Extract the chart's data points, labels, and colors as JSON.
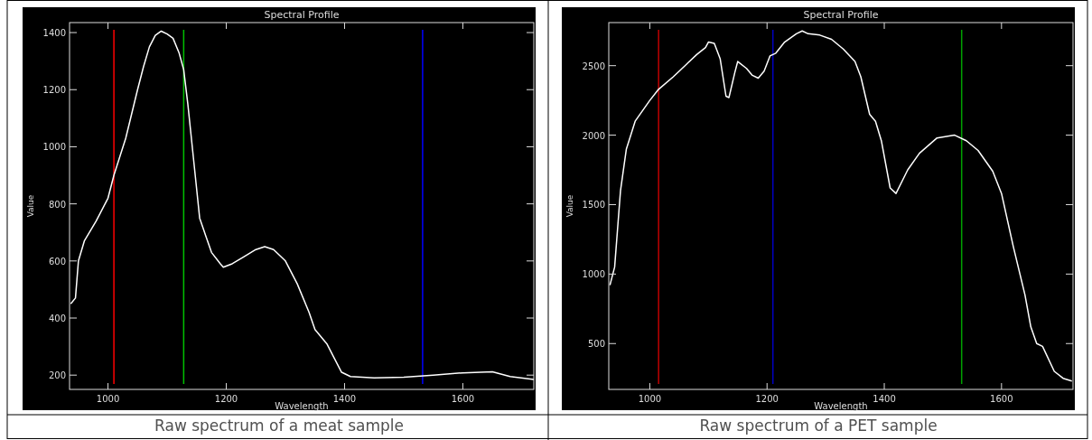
{
  "chart_data": [
    {
      "type": "line",
      "title": "Spectral Profile",
      "xlabel": "Wavelength",
      "ylabel": "Value",
      "annotations": [
        "Raw spectrum of a meat sample"
      ],
      "xlim": [
        935,
        1720
      ],
      "ylim": [
        150,
        1435
      ],
      "xticks": [
        1000,
        1200,
        1400,
        1600
      ],
      "yticks": [
        200,
        400,
        600,
        800,
        1000,
        1200,
        1400
      ],
      "grid": false,
      "ref_lines": [
        {
          "axis": "x",
          "value": 1010,
          "color": "#ff0000"
        },
        {
          "axis": "x",
          "value": 1128,
          "color": "#00c000"
        },
        {
          "axis": "x",
          "value": 1532,
          "color": "#0000ff"
        }
      ],
      "series": [
        {
          "color": "#ffffff",
          "x": [
            937,
            945,
            950,
            960,
            980,
            1000,
            1010,
            1030,
            1050,
            1060,
            1070,
            1080,
            1090,
            1100,
            1110,
            1120,
            1128,
            1135,
            1145,
            1155,
            1165,
            1175,
            1190,
            1195,
            1210,
            1230,
            1250,
            1265,
            1280,
            1290,
            1300,
            1320,
            1340,
            1350,
            1370,
            1380,
            1395,
            1410,
            1450,
            1500,
            1550,
            1600,
            1650,
            1680,
            1720
          ],
          "values": [
            450,
            470,
            600,
            670,
            740,
            820,
            900,
            1030,
            1200,
            1280,
            1350,
            1390,
            1405,
            1395,
            1380,
            1330,
            1270,
            1150,
            950,
            750,
            690,
            630,
            590,
            578,
            590,
            615,
            640,
            650,
            640,
            620,
            600,
            520,
            420,
            360,
            310,
            270,
            210,
            195,
            190,
            193,
            200,
            208,
            212,
            195,
            185
          ]
        }
      ]
    },
    {
      "type": "line",
      "title": "Spectral Profile",
      "xlabel": "Wavelength",
      "ylabel": "Value",
      "annotations": [
        "Raw spectrum of a PET sample"
      ],
      "xlim": [
        930,
        1722
      ],
      "ylim": [
        170,
        2810
      ],
      "xticks": [
        1000,
        1200,
        1400,
        1600
      ],
      "yticks": [
        500,
        1000,
        1500,
        2000,
        2500
      ],
      "grid": false,
      "ref_lines": [
        {
          "axis": "x",
          "value": 1015,
          "color": "#c00000"
        },
        {
          "axis": "x",
          "value": 1210,
          "color": "#0000c0"
        },
        {
          "axis": "x",
          "value": 1532,
          "color": "#00a000"
        }
      ],
      "series": [
        {
          "color": "#ffffff",
          "x": [
            932,
            940,
            950,
            960,
            975,
            1000,
            1015,
            1040,
            1060,
            1080,
            1095,
            1100,
            1110,
            1120,
            1130,
            1135,
            1145,
            1150,
            1165,
            1175,
            1185,
            1195,
            1205,
            1215,
            1230,
            1250,
            1260,
            1270,
            1290,
            1310,
            1330,
            1350,
            1360,
            1375,
            1385,
            1395,
            1410,
            1420,
            1440,
            1460,
            1490,
            1520,
            1540,
            1560,
            1585,
            1600,
            1620,
            1640,
            1650,
            1660,
            1670,
            1690,
            1705,
            1720
          ],
          "values": [
            920,
            1050,
            1600,
            1900,
            2100,
            2250,
            2330,
            2420,
            2500,
            2580,
            2630,
            2670,
            2660,
            2550,
            2280,
            2270,
            2450,
            2530,
            2480,
            2430,
            2410,
            2460,
            2570,
            2590,
            2670,
            2730,
            2750,
            2730,
            2720,
            2690,
            2620,
            2530,
            2420,
            2150,
            2100,
            1960,
            1620,
            1580,
            1750,
            1870,
            1980,
            2000,
            1960,
            1890,
            1740,
            1580,
            1200,
            850,
            620,
            500,
            480,
            300,
            250,
            230
          ]
        }
      ]
    }
  ]
}
